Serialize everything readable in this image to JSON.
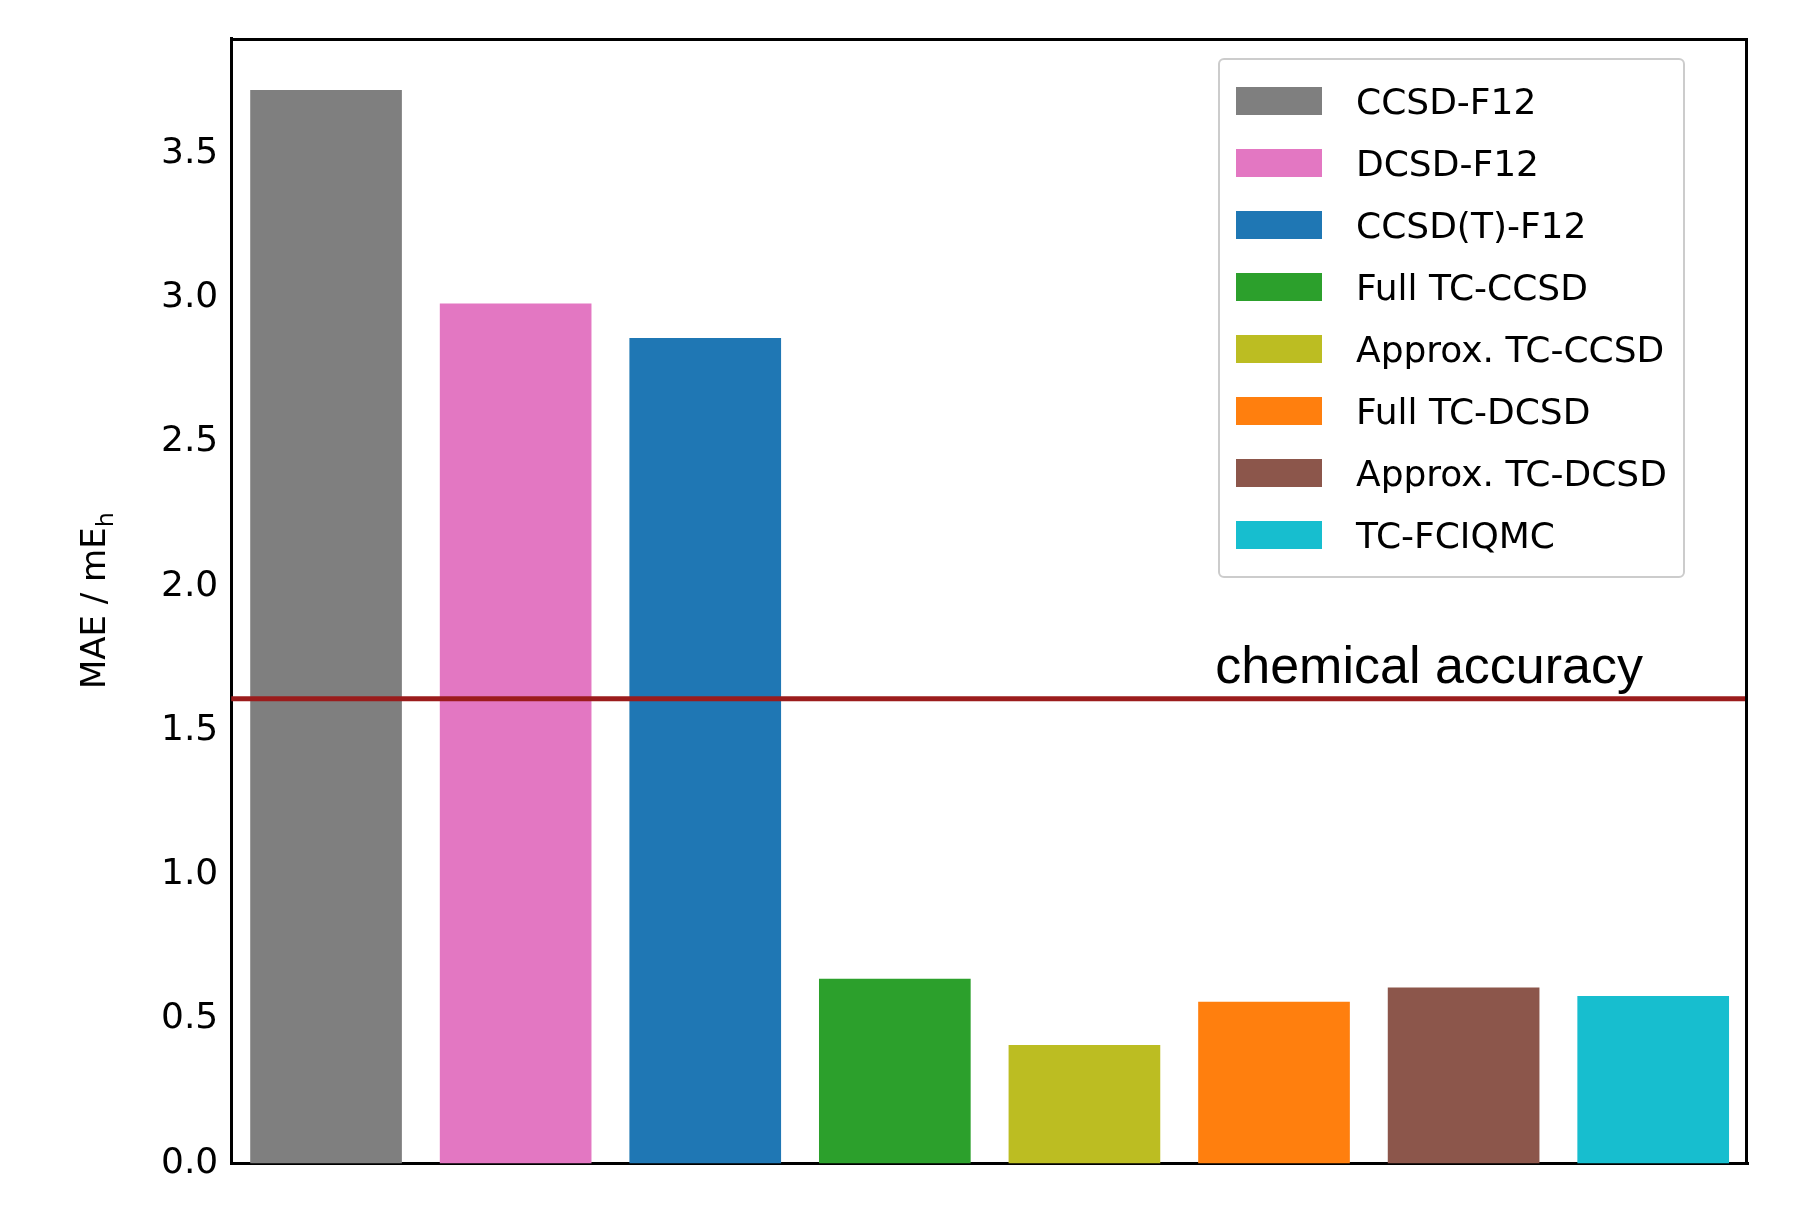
{
  "chart_data": {
    "type": "bar",
    "ylabel": "MAE / mE$_{h}$",
    "categories": [
      null,
      null,
      null,
      null,
      null,
      null,
      null,
      null
    ],
    "series": [
      {
        "name": "CCSD-F12",
        "color": "#7f7f7f",
        "values": [
          3.72,
          null,
          null,
          null,
          null,
          null,
          null,
          null
        ]
      },
      {
        "name": "DCSD-F12",
        "color": "#e377c2",
        "values": [
          null,
          2.98,
          null,
          null,
          null,
          null,
          null,
          null
        ]
      },
      {
        "name": "CCSD(T)-F12",
        "color": "#1f77b4",
        "values": [
          null,
          null,
          2.86,
          null,
          null,
          null,
          null,
          null
        ]
      },
      {
        "name": "Full TC-CCSD",
        "color": "#2ca02c",
        "values": [
          null,
          null,
          null,
          0.64,
          null,
          null,
          null,
          null
        ]
      },
      {
        "name": "Approx. TC-CCSD",
        "color": "#bcbd22",
        "values": [
          null,
          null,
          null,
          null,
          0.41,
          null,
          null,
          null
        ]
      },
      {
        "name": "Full TC-DCSD",
        "color": "#ff7f0e",
        "values": [
          null,
          null,
          null,
          null,
          null,
          0.56,
          null,
          null
        ]
      },
      {
        "name": "Approx. TC-DCSD",
        "color": "#8c564b",
        "values": [
          null,
          null,
          null,
          null,
          null,
          null,
          0.61,
          null
        ]
      },
      {
        "name": "TC-FCIQMC",
        "color": "#17becf",
        "values": [
          null,
          null,
          null,
          null,
          null,
          null,
          null,
          0.58
        ]
      }
    ],
    "ylim": [
      0,
      3.9
    ],
    "yticks": [
      {
        "value": 0,
        "label": "0.0"
      },
      0.5,
      {
        "value": 1,
        "label": "1.0"
      },
      1.5,
      {
        "value": 2,
        "label": "2.0"
      },
      2.5,
      {
        "value": 3,
        "label": "3.0"
      },
      3.5
    ],
    "ref_lines": [
      {
        "axis": "y",
        "value": 1.61,
        "label": "chemical accuracy",
        "color": "#9b1c1c"
      }
    ],
    "grid": false,
    "legend": "top right",
    "tick_labels": "y"
  }
}
